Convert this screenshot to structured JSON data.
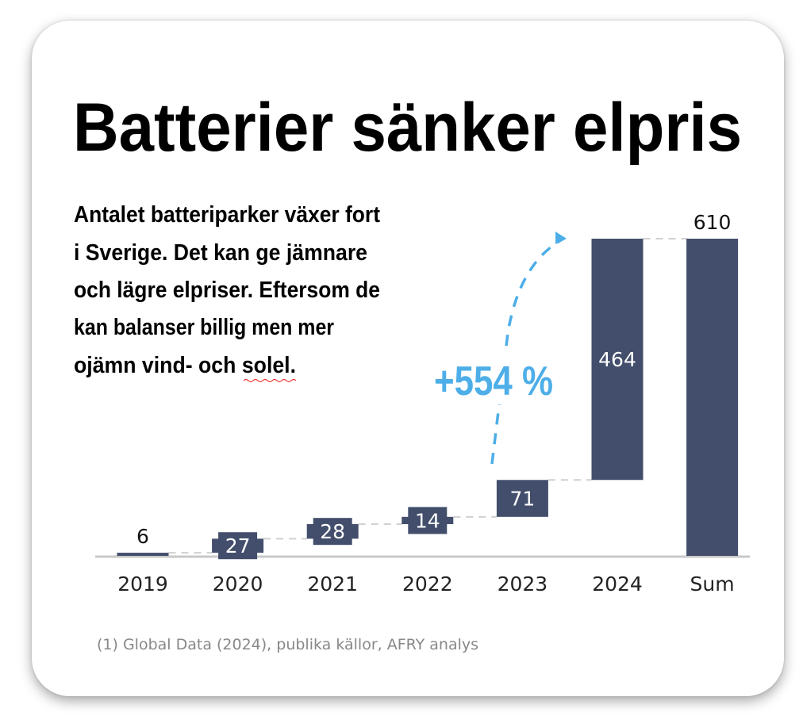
{
  "title": "Batterier sänker elpris",
  "paragraph": [
    "Antalet batteriparker växer fort",
    "i Sverige. Det kan ge jämnare",
    "och lägre elpriser. Eftersom de",
    "kan balanser billig men mer",
    "ojämn vind- och solel."
  ],
  "growth_annotation": "+554 %",
  "footnote": "(1) Global Data (2024), publika källor, AFRY analys",
  "colors": {
    "bar": "#424e6b",
    "accent": "#4daee8"
  },
  "chart_data": {
    "type": "waterfall",
    "title": "",
    "xlabel": "",
    "ylabel": "",
    "categories": [
      "2019",
      "2020",
      "2021",
      "2022",
      "2023",
      "2024",
      "Sum"
    ],
    "values": [
      6,
      27,
      28,
      14,
      71,
      464,
      610
    ],
    "labels": [
      "6",
      "27",
      "28",
      "14",
      "71",
      "464",
      "610"
    ],
    "total_index": 6,
    "ylim": [
      0,
      610
    ],
    "grid": false,
    "legend": "none"
  }
}
